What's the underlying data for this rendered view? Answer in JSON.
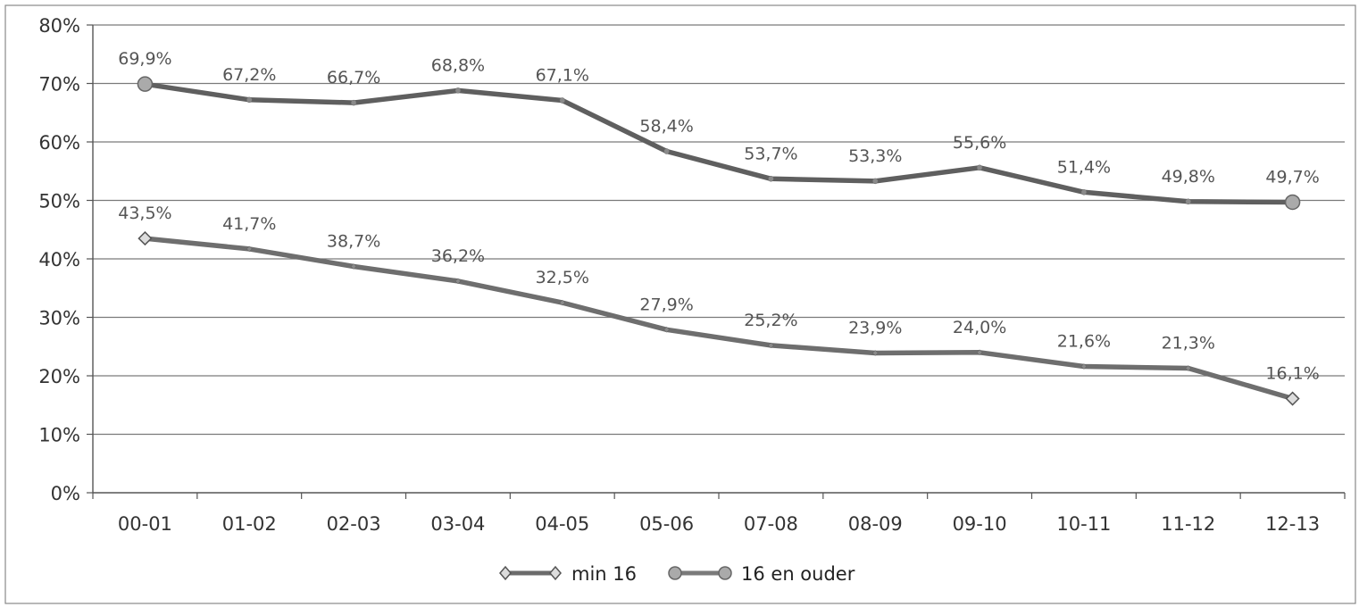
{
  "chart_data": {
    "type": "line",
    "title": "",
    "xlabel": "",
    "ylabel": "",
    "categories": [
      "00-01",
      "01-02",
      "02-03",
      "03-04",
      "04-05",
      "05-06",
      "07-08",
      "08-09",
      "09-10",
      "10-11",
      "11-12",
      "12-13"
    ],
    "ylim": [
      0,
      80
    ],
    "yticks": [
      "0%",
      "10%",
      "20%",
      "30%",
      "40%",
      "50%",
      "60%",
      "70%",
      "80%"
    ],
    "grid": true,
    "legend": "bottom",
    "series": [
      {
        "name": "min 16",
        "marker": "diamond",
        "color": "#6b6b6b",
        "values": [
          43.5,
          41.7,
          38.7,
          36.2,
          32.5,
          27.9,
          25.2,
          23.9,
          24.0,
          21.6,
          21.3,
          16.1
        ],
        "labels": [
          "43,5%",
          "41,7%",
          "38,7%",
          "36,2%",
          "32,5%",
          "27,9%",
          "25,2%",
          "23,9%",
          "24,0%",
          "21,6%",
          "21,3%",
          "16,1%"
        ]
      },
      {
        "name": "16 en ouder",
        "marker": "circle",
        "color": "#6b6b6b",
        "values": [
          69.9,
          67.2,
          66.7,
          68.8,
          67.1,
          58.4,
          53.7,
          53.3,
          55.6,
          51.4,
          49.8,
          49.7
        ],
        "labels": [
          "69,9%",
          "67,2%",
          "66,7%",
          "68,8%",
          "67,1%",
          "58,4%",
          "53,7%",
          "53,3%",
          "55,6%",
          "51,4%",
          "49,8%",
          "49,7%"
        ]
      }
    ]
  }
}
